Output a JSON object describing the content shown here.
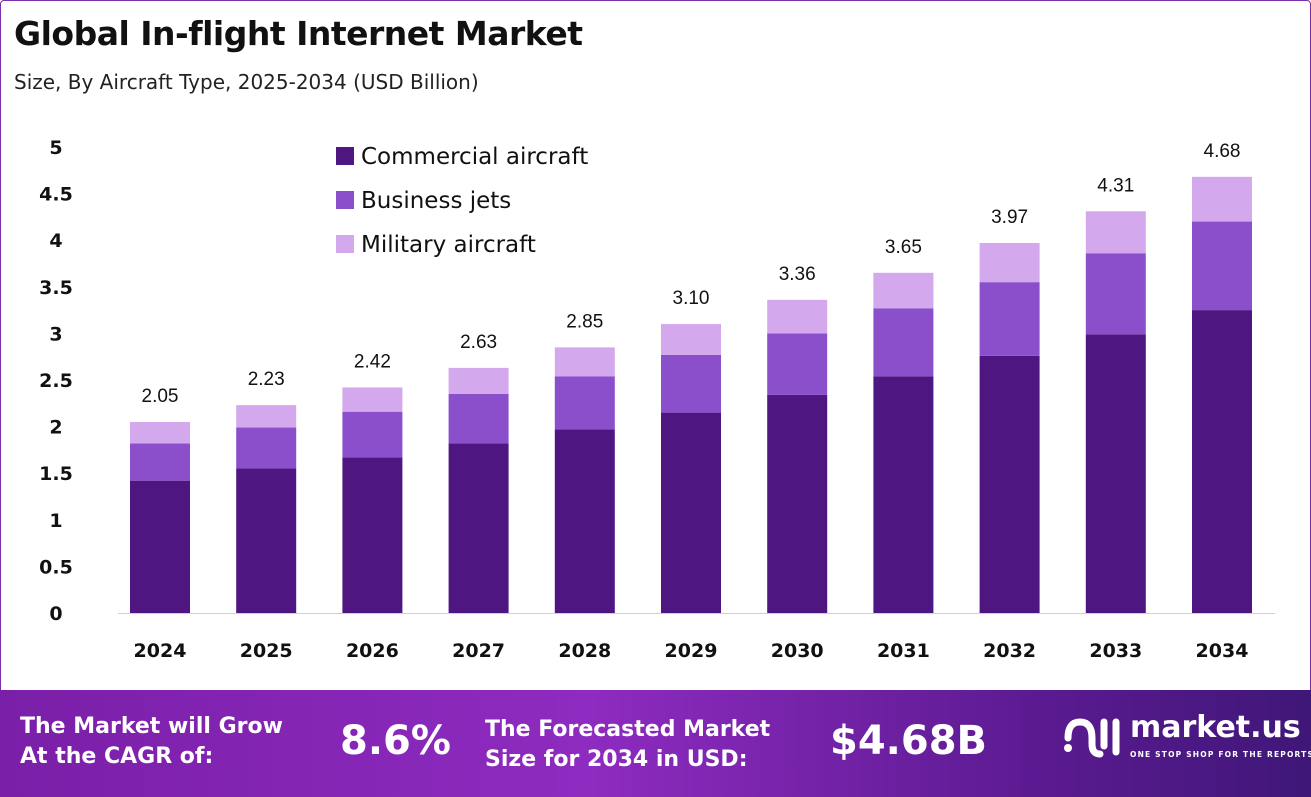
{
  "header": {
    "title": "Global In-flight Internet Market",
    "subtitle": "Size, By Aircraft Type, 2025-2034 (USD Billion)"
  },
  "chart_data": {
    "type": "bar",
    "stacked": true,
    "categories": [
      "2024",
      "2025",
      "2026",
      "2027",
      "2028",
      "2029",
      "2030",
      "2031",
      "2032",
      "2033",
      "2034"
    ],
    "series": [
      {
        "name": "Commercial aircraft",
        "color": "#4E1680",
        "values": [
          1.42,
          1.55,
          1.67,
          1.82,
          1.97,
          2.15,
          2.34,
          2.54,
          2.76,
          2.99,
          3.25
        ]
      },
      {
        "name": "Business jets",
        "color": "#8B4FCC",
        "values": [
          0.4,
          0.44,
          0.49,
          0.53,
          0.57,
          0.62,
          0.66,
          0.73,
          0.79,
          0.87,
          0.95
        ]
      },
      {
        "name": "Military aircraft",
        "color": "#D3A8EC",
        "values": [
          0.23,
          0.24,
          0.26,
          0.28,
          0.31,
          0.33,
          0.36,
          0.38,
          0.42,
          0.45,
          0.48
        ]
      }
    ],
    "totals": [
      "2.05",
      "2.23",
      "2.42",
      "2.63",
      "2.85",
      "3.10",
      "3.36",
      "3.65",
      "3.97",
      "4.31",
      "4.68"
    ],
    "yticks": [
      "0",
      "0.5",
      "1",
      "1.5",
      "2",
      "2.5",
      "3",
      "3.5",
      "4",
      "4.5",
      "5"
    ],
    "ylim": [
      0,
      5
    ],
    "grid": false,
    "legend_position": "top-left"
  },
  "footer": {
    "cagr_label": "The Market will Grow At the CAGR of:",
    "cagr_value": "8.6%",
    "forecast_label": "The Forecasted Market Size for 2034 in USD:",
    "forecast_value": "$4.68B",
    "logo_name": "market.us",
    "logo_tagline": "ONE STOP SHOP FOR THE REPORTS"
  }
}
